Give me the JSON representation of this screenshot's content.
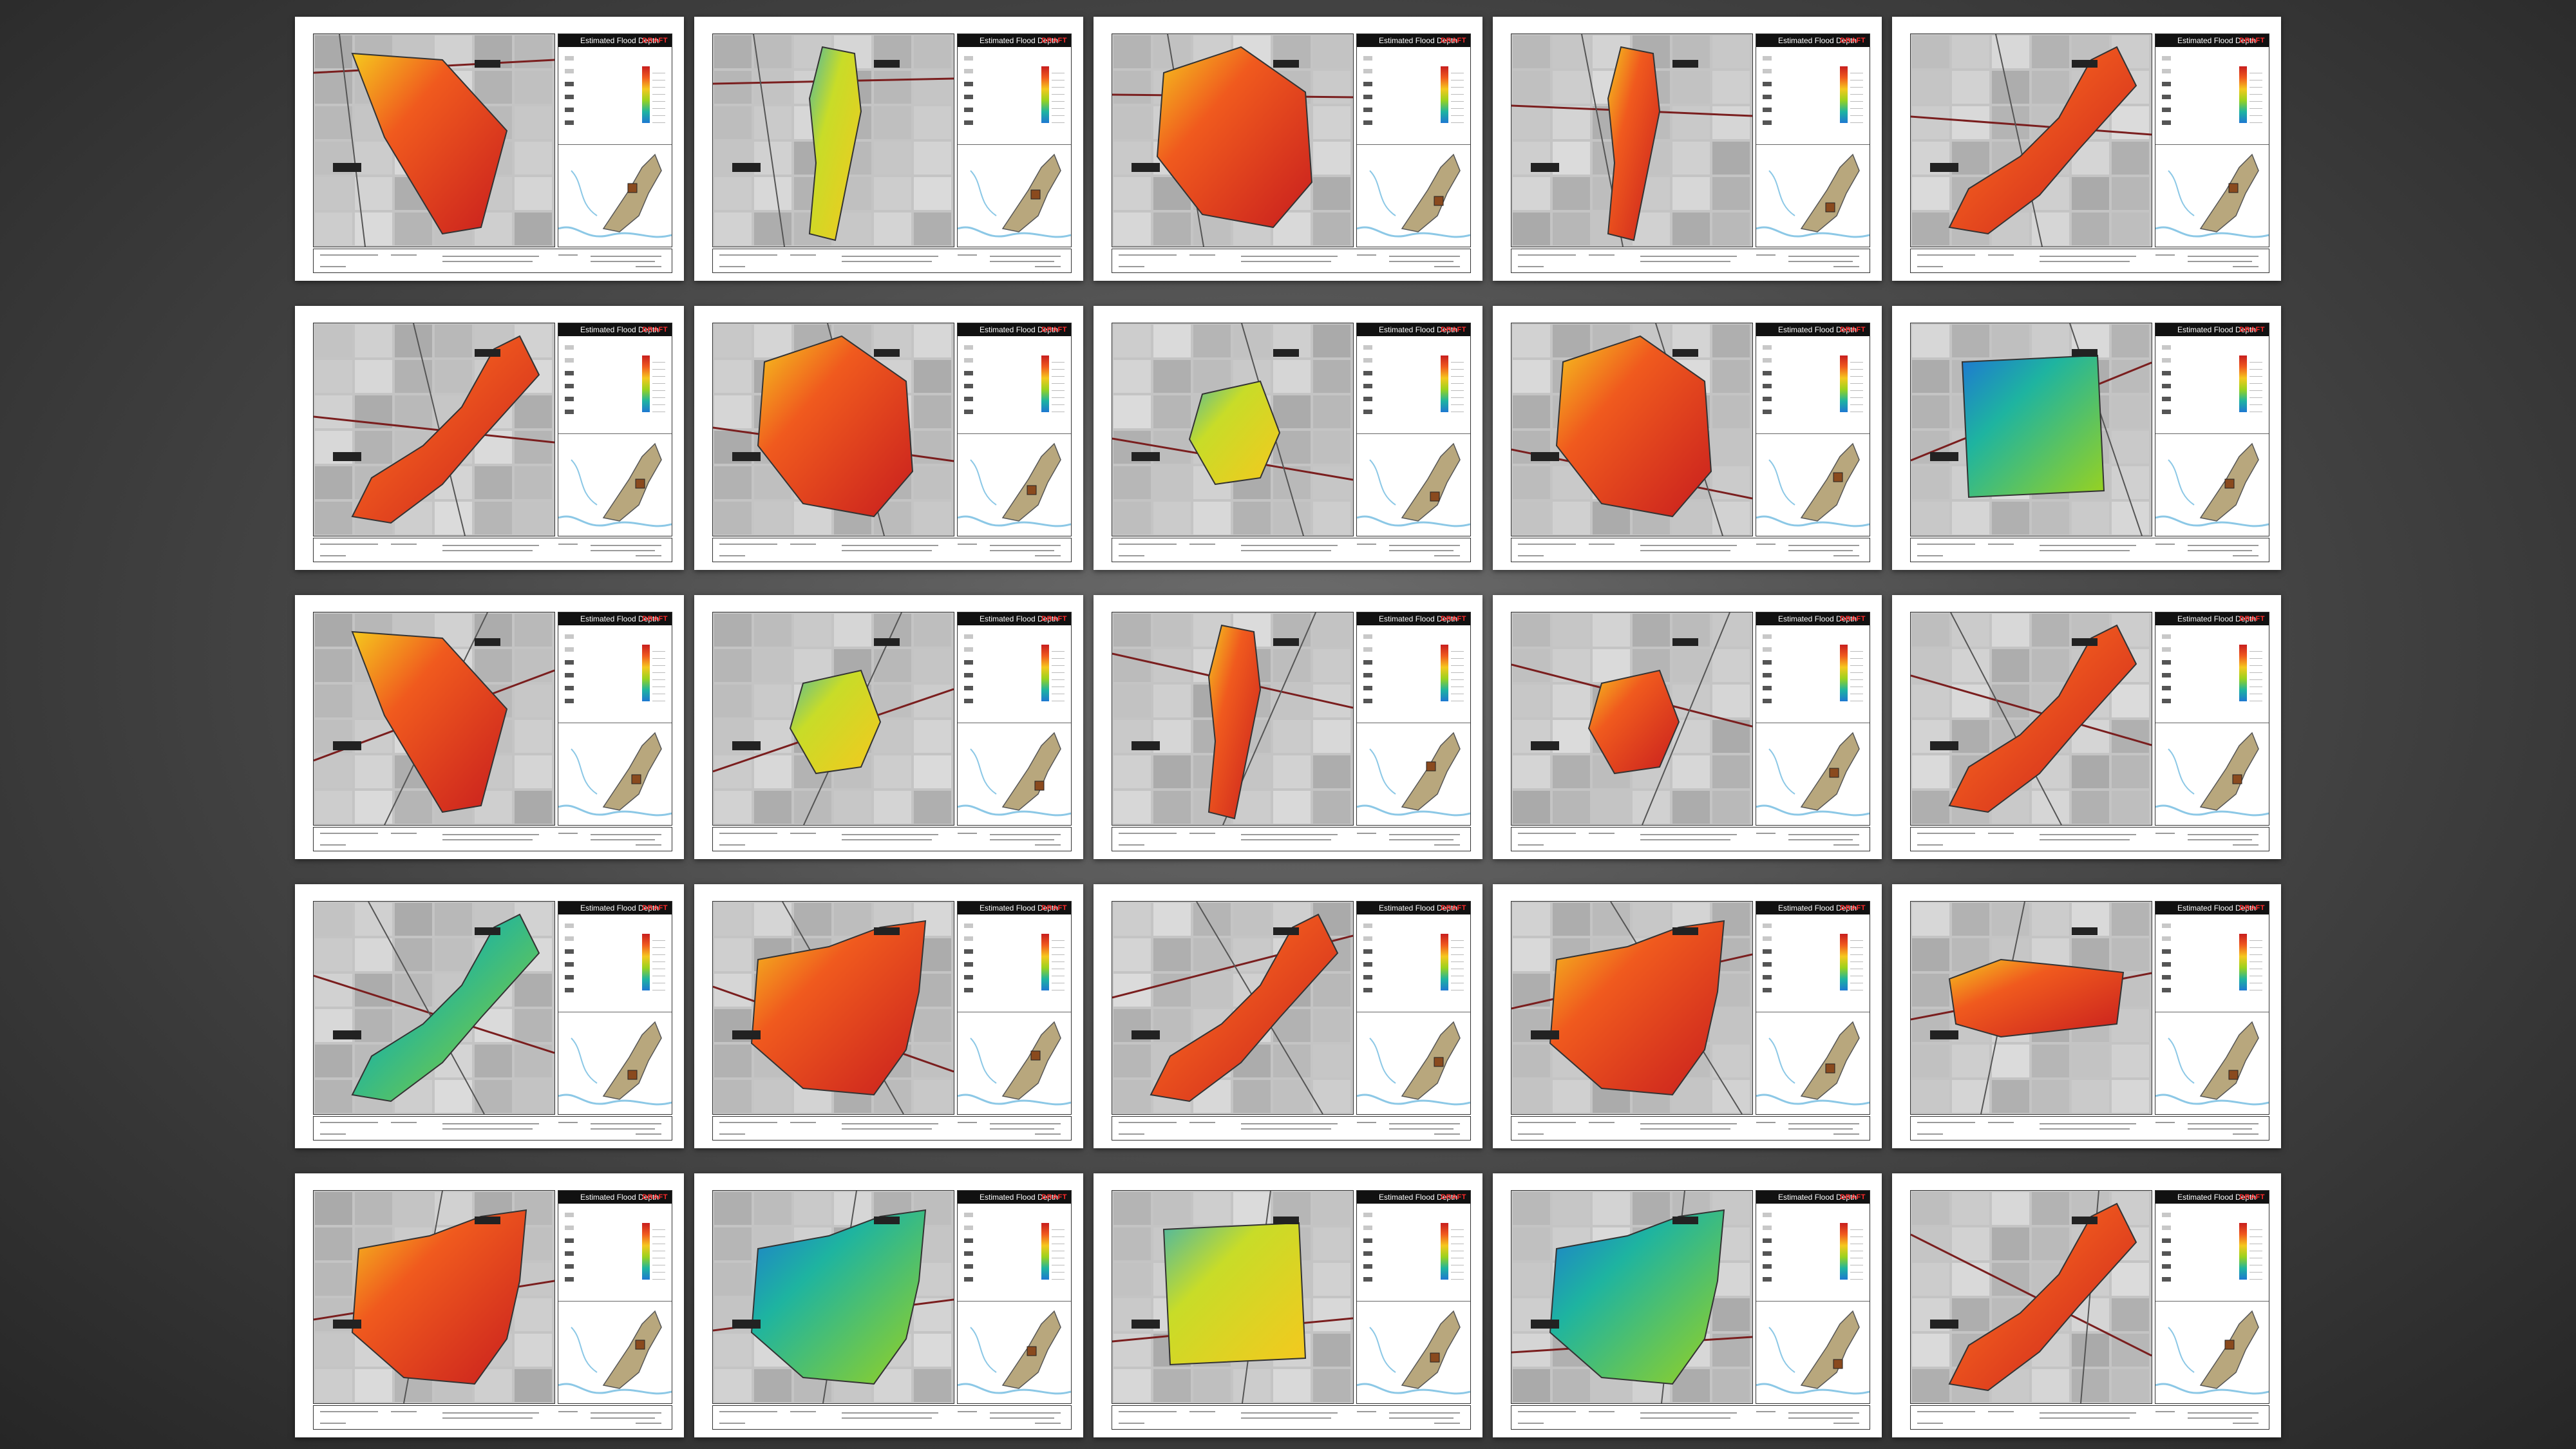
{
  "sheet_title": "Estimated Flood Depth",
  "draft_label": "DRAFT",
  "colors": {
    "background": "#4a4a4a",
    "depth_ramp": [
      "#c81e1e",
      "#f05a1e",
      "#f5c81e",
      "#9ad21e",
      "#1eb4a0",
      "#1e78d2"
    ],
    "river": "#8cc8e6",
    "inset_land": "#b8a77d"
  },
  "sheets": [
    {
      "index": 1,
      "tone": "red",
      "shape": "wedge"
    },
    {
      "index": 2,
      "tone": "yellow",
      "shape": "strip"
    },
    {
      "index": 3,
      "tone": "red",
      "shape": "basin"
    },
    {
      "index": 4,
      "tone": "red",
      "shape": "strip"
    },
    {
      "index": 5,
      "tone": "red",
      "shape": "diagonal"
    },
    {
      "index": 6,
      "tone": "red",
      "shape": "diagonal"
    },
    {
      "index": 7,
      "tone": "red",
      "shape": "basin"
    },
    {
      "index": 8,
      "tone": "yellow",
      "shape": "small"
    },
    {
      "index": 9,
      "tone": "red",
      "shape": "basin"
    },
    {
      "index": 10,
      "tone": "green",
      "shape": "square"
    },
    {
      "index": 11,
      "tone": "red",
      "shape": "wedge"
    },
    {
      "index": 12,
      "tone": "yellow",
      "shape": "small"
    },
    {
      "index": 13,
      "tone": "red",
      "shape": "strip"
    },
    {
      "index": 14,
      "tone": "red",
      "shape": "small"
    },
    {
      "index": 15,
      "tone": "red",
      "shape": "diagonal"
    },
    {
      "index": 16,
      "tone": "green",
      "shape": "diagonal"
    },
    {
      "index": 17,
      "tone": "red",
      "shape": "spread"
    },
    {
      "index": 18,
      "tone": "red",
      "shape": "diagonal"
    },
    {
      "index": 19,
      "tone": "red",
      "shape": "spread"
    },
    {
      "index": 20,
      "tone": "red",
      "shape": "band"
    },
    {
      "index": 21,
      "tone": "red",
      "shape": "spread"
    },
    {
      "index": 22,
      "tone": "green",
      "shape": "spread"
    },
    {
      "index": 23,
      "tone": "yellow",
      "shape": "square"
    },
    {
      "index": 24,
      "tone": "green",
      "shape": "spread"
    },
    {
      "index": 25,
      "tone": "red",
      "shape": "diagonal"
    }
  ]
}
